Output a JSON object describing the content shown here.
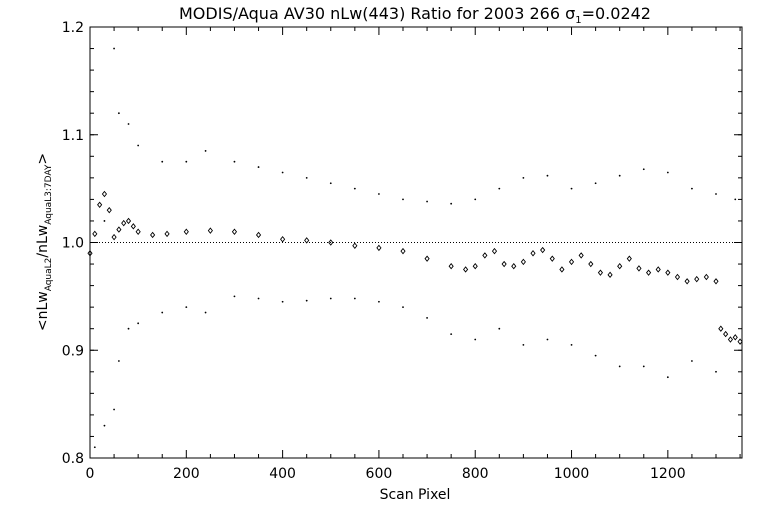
{
  "chart_data": {
    "type": "scatter",
    "title_main": "MODIS/Aqua AV30 nLw(443) Ratio for 2003 266 ",
    "title_sigma": "σ",
    "title_sigma_sub": "1",
    "title_value": "=0.0242",
    "xlabel": "Scan Pixel",
    "ylabel_parts": {
      "lt": "<nLw",
      "sub1": "AquaL2",
      "mid": "/nLw",
      "sub2": "AquaL3:7DAY",
      "gt": ">"
    },
    "xlim": [
      0,
      1354
    ],
    "ylim": [
      0.8,
      1.2
    ],
    "x_ticks": [
      0,
      200,
      400,
      600,
      800,
      1000,
      1200
    ],
    "x_tick_labels": [
      "0",
      "200",
      "400",
      "600",
      "800",
      "1000",
      "1200"
    ],
    "y_ticks": [
      0.8,
      0.9,
      1.0,
      1.1,
      1.2
    ],
    "y_tick_labels": [
      "0.8",
      "0.9",
      "1.0",
      "1.1",
      "1.2"
    ],
    "reference_line": 1.0,
    "series": [
      {
        "role": "mean ratio",
        "marker": "diamond",
        "points": [
          [
            0,
            0.99
          ],
          [
            10,
            1.008
          ],
          [
            20,
            1.035
          ],
          [
            30,
            1.045
          ],
          [
            40,
            1.03
          ],
          [
            50,
            1.005
          ],
          [
            60,
            1.012
          ],
          [
            70,
            1.018
          ],
          [
            80,
            1.02
          ],
          [
            90,
            1.015
          ],
          [
            100,
            1.01
          ],
          [
            130,
            1.007
          ],
          [
            160,
            1.008
          ],
          [
            200,
            1.01
          ],
          [
            250,
            1.011
          ],
          [
            300,
            1.01
          ],
          [
            350,
            1.007
          ],
          [
            400,
            1.003
          ],
          [
            450,
            1.002
          ],
          [
            500,
            1.0
          ],
          [
            550,
            0.997
          ],
          [
            600,
            0.995
          ],
          [
            650,
            0.992
          ],
          [
            700,
            0.985
          ],
          [
            750,
            0.978
          ],
          [
            780,
            0.975
          ],
          [
            800,
            0.978
          ],
          [
            820,
            0.988
          ],
          [
            840,
            0.992
          ],
          [
            860,
            0.98
          ],
          [
            880,
            0.978
          ],
          [
            900,
            0.982
          ],
          [
            920,
            0.99
          ],
          [
            940,
            0.993
          ],
          [
            960,
            0.985
          ],
          [
            980,
            0.975
          ],
          [
            1000,
            0.982
          ],
          [
            1020,
            0.988
          ],
          [
            1040,
            0.98
          ],
          [
            1060,
            0.972
          ],
          [
            1080,
            0.97
          ],
          [
            1100,
            0.978
          ],
          [
            1120,
            0.985
          ],
          [
            1140,
            0.976
          ],
          [
            1160,
            0.972
          ],
          [
            1180,
            0.975
          ],
          [
            1200,
            0.972
          ],
          [
            1220,
            0.968
          ],
          [
            1240,
            0.964
          ],
          [
            1260,
            0.966
          ],
          [
            1280,
            0.968
          ],
          [
            1300,
            0.964
          ],
          [
            1310,
            0.92
          ],
          [
            1320,
            0.915
          ],
          [
            1330,
            0.91
          ],
          [
            1340,
            0.912
          ],
          [
            1350,
            0.908
          ]
        ]
      },
      {
        "role": "upper bound",
        "marker": "dot",
        "points": [
          [
            30,
            1.02
          ],
          [
            50,
            1.18
          ],
          [
            60,
            1.12
          ],
          [
            80,
            1.11
          ],
          [
            100,
            1.09
          ],
          [
            150,
            1.075
          ],
          [
            200,
            1.075
          ],
          [
            240,
            1.085
          ],
          [
            300,
            1.075
          ],
          [
            350,
            1.07
          ],
          [
            400,
            1.065
          ],
          [
            450,
            1.06
          ],
          [
            500,
            1.055
          ],
          [
            550,
            1.05
          ],
          [
            600,
            1.045
          ],
          [
            650,
            1.04
          ],
          [
            700,
            1.038
          ],
          [
            750,
            1.036
          ],
          [
            800,
            1.04
          ],
          [
            850,
            1.05
          ],
          [
            900,
            1.06
          ],
          [
            950,
            1.062
          ],
          [
            1000,
            1.05
          ],
          [
            1050,
            1.055
          ],
          [
            1100,
            1.062
          ],
          [
            1150,
            1.068
          ],
          [
            1200,
            1.065
          ],
          [
            1250,
            1.05
          ],
          [
            1300,
            1.045
          ],
          [
            1340,
            1.04
          ]
        ]
      },
      {
        "role": "lower bound",
        "marker": "dot",
        "points": [
          [
            10,
            0.81
          ],
          [
            30,
            0.83
          ],
          [
            50,
            0.845
          ],
          [
            60,
            0.89
          ],
          [
            80,
            0.92
          ],
          [
            100,
            0.925
          ],
          [
            150,
            0.935
          ],
          [
            200,
            0.94
          ],
          [
            240,
            0.935
          ],
          [
            300,
            0.95
          ],
          [
            350,
            0.948
          ],
          [
            400,
            0.945
          ],
          [
            450,
            0.946
          ],
          [
            500,
            0.948
          ],
          [
            550,
            0.948
          ],
          [
            600,
            0.945
          ],
          [
            650,
            0.94
          ],
          [
            700,
            0.93
          ],
          [
            750,
            0.915
          ],
          [
            800,
            0.91
          ],
          [
            850,
            0.92
          ],
          [
            900,
            0.905
          ],
          [
            950,
            0.91
          ],
          [
            1000,
            0.905
          ],
          [
            1050,
            0.895
          ],
          [
            1100,
            0.885
          ],
          [
            1150,
            0.885
          ],
          [
            1200,
            0.875
          ],
          [
            1250,
            0.89
          ],
          [
            1300,
            0.88
          ]
        ]
      }
    ]
  }
}
